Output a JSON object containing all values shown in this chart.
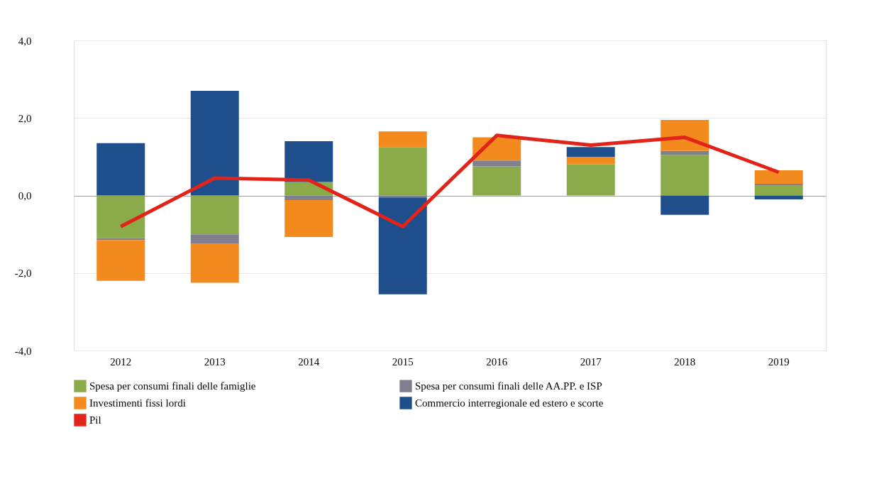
{
  "chart_data": {
    "type": "bar",
    "stacked": true,
    "categories": [
      "2012",
      "2013",
      "2014",
      "2015",
      "2016",
      "2017",
      "2018",
      "2019"
    ],
    "series": [
      {
        "name": "Spesa per consumi finali delle famiglie",
        "color": "#8bab4a",
        "values": [
          -1.1,
          -1.0,
          0.35,
          1.25,
          0.75,
          0.8,
          1.05,
          0.25
        ]
      },
      {
        "name": "Spesa per consumi finali delle AA.PP. e ISP",
        "color": "#7f7f8f",
        "values": [
          -0.05,
          -0.25,
          -0.12,
          -0.05,
          0.15,
          0.0,
          0.1,
          0.05
        ]
      },
      {
        "name": "Investimenti fissi lordi",
        "color": "#f38a1e",
        "values": [
          -1.05,
          -1.0,
          -0.95,
          0.4,
          0.6,
          0.2,
          0.8,
          0.35
        ]
      },
      {
        "name": "Commercio interregionale ed estero e scorte",
        "color": "#1f4e8c",
        "values": [
          1.35,
          2.7,
          1.05,
          -2.5,
          0.0,
          0.25,
          -0.5,
          -0.1
        ]
      },
      {
        "name": "Pil",
        "type": "line",
        "color": "#e2231a",
        "values": [
          -0.8,
          0.45,
          0.4,
          -0.8,
          1.55,
          1.3,
          1.5,
          0.6
        ]
      }
    ],
    "ylim": [
      -4,
      4
    ],
    "yticks": [
      {
        "value": -4,
        "label": "-4,0"
      },
      {
        "value": -2,
        "label": "-2,0"
      },
      {
        "value": 0,
        "label": "0,0"
      },
      {
        "value": 2,
        "label": "2,0"
      },
      {
        "value": 4,
        "label": "4,0"
      }
    ],
    "grid": "y",
    "legend": "bottom",
    "marker": "none",
    "line_style": "solid"
  }
}
